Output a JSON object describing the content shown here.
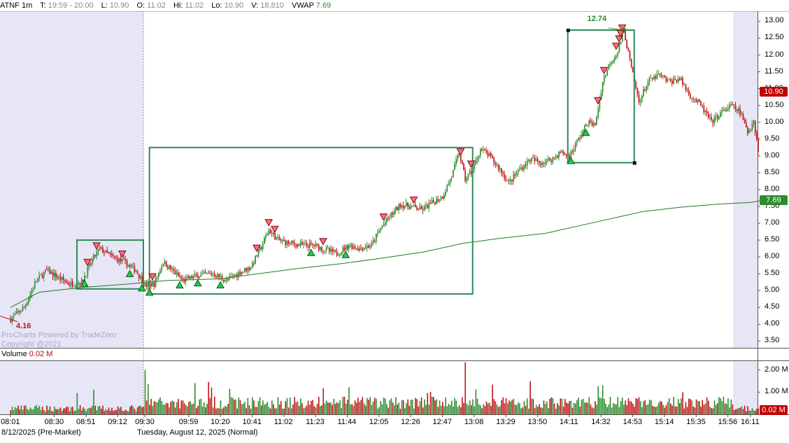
{
  "header": {
    "symbol": "ATNF 1m",
    "t_label": "T:",
    "t_value": "19:59 - 20:00",
    "l_label": "L:",
    "l_value": "10.90",
    "o_label": "O:",
    "o_value": "11.02",
    "h_label": "Hi:",
    "h_value": "11.02",
    "lo_label": "Lo:",
    "lo_value": "10.90",
    "v_label": "V:",
    "v_value": "18,810",
    "vwap_label": "VWAP",
    "vwap_value": "7.69"
  },
  "watermark": {
    "line1": "ProCharts Powered by TradeZero",
    "line2": "Copyright @2021"
  },
  "volume_header": {
    "label": "Volume",
    "value": "0.02 M"
  },
  "dates": {
    "premarket": "8/12/2025 (Pre-Market)",
    "normal": "Tuesday, August 12, 2025 (Normal)"
  },
  "colors": {
    "up": "#2e8b2e",
    "down": "#c01515",
    "vwap": "#1f7a1f",
    "box": "#2e8b57",
    "extended_bg": "#e6e6f7",
    "last_tag": "#c00000",
    "vwap_tag": "#2e8b2e"
  },
  "chart_data": {
    "type": "candlestick",
    "symbol": "ATNF",
    "interval": "1m",
    "price_axis": {
      "ticks": [
        "13.00",
        "12.50",
        "12.00",
        "11.50",
        "11.00",
        "10.50",
        "10.00",
        "9.50",
        "9.00",
        "8.50",
        "8.00",
        "7.50",
        "7.00",
        "6.50",
        "6.00",
        "5.50",
        "5.00",
        "4.50",
        "4.00",
        "3.50"
      ],
      "range": [
        3.3,
        13.3
      ]
    },
    "volume_axis": {
      "ticks": [
        "2.00 M",
        "1.00 M"
      ],
      "range": [
        0,
        2.4
      ]
    },
    "time_ticks": [
      "08:01",
      "08:30",
      "08:51",
      "09:12",
      "09:30",
      "09:59",
      "10:20",
      "10:41",
      "11:02",
      "11:23",
      "11:44",
      "12:05",
      "12:26",
      "12:47",
      "13:08",
      "13:29",
      "13:50",
      "14:11",
      "14:32",
      "14:53",
      "15:14",
      "15:35",
      "15:56",
      "16:11"
    ],
    "last_price_label": "10.90",
    "last_price": 10.9,
    "vwap_label": "7.69",
    "vwap": 7.69,
    "last_volume_label": "0.02 M",
    "low_marker": {
      "label": "4.16",
      "time": "08:01",
      "price": 4.16
    },
    "high_marker": {
      "label": "12.74",
      "time": "14:47",
      "price": 12.74
    },
    "boxes": [
      {
        "start": "08:45",
        "end": "09:29",
        "top": 6.5,
        "bottom": 5.05
      },
      {
        "start": "09:33",
        "end": "13:07",
        "top": 9.25,
        "bottom": 4.9
      },
      {
        "start": "14:10",
        "end": "14:54",
        "top": 12.74,
        "bottom": 8.8
      }
    ],
    "price_path": [
      [
        "08:01",
        4.16
      ],
      [
        "08:10",
        4.5
      ],
      [
        "08:18",
        5.3
      ],
      [
        "08:25",
        5.6
      ],
      [
        "08:32",
        5.4
      ],
      [
        "08:40",
        5.2
      ],
      [
        "08:48",
        5.25
      ],
      [
        "08:55",
        5.9
      ],
      [
        "09:00",
        6.25
      ],
      [
        "09:08",
        6.0
      ],
      [
        "09:16",
        5.85
      ],
      [
        "09:24",
        5.6
      ],
      [
        "09:30",
        5.15
      ],
      [
        "09:36",
        5.2
      ],
      [
        "09:42",
        5.85
      ],
      [
        "09:48",
        5.6
      ],
      [
        "09:55",
        5.3
      ],
      [
        "10:05",
        5.45
      ],
      [
        "10:15",
        5.5
      ],
      [
        "10:24",
        5.3
      ],
      [
        "10:33",
        5.55
      ],
      [
        "10:40",
        5.7
      ],
      [
        "10:47",
        6.3
      ],
      [
        "10:52",
        6.8
      ],
      [
        "10:58",
        6.5
      ],
      [
        "11:06",
        6.4
      ],
      [
        "11:14",
        6.35
      ],
      [
        "11:22",
        6.35
      ],
      [
        "11:30",
        6.2
      ],
      [
        "11:37",
        6.1
      ],
      [
        "11:45",
        6.35
      ],
      [
        "11:52",
        6.25
      ],
      [
        "12:00",
        6.35
      ],
      [
        "12:06",
        6.85
      ],
      [
        "12:12",
        7.2
      ],
      [
        "12:19",
        7.55
      ],
      [
        "12:26",
        7.5
      ],
      [
        "12:33",
        7.4
      ],
      [
        "12:40",
        7.6
      ],
      [
        "12:47",
        7.8
      ],
      [
        "12:53",
        8.4
      ],
      [
        "12:58",
        9.1
      ],
      [
        "13:02",
        8.3
      ],
      [
        "13:07",
        8.6
      ],
      [
        "13:12",
        9.2
      ],
      [
        "13:18",
        9.0
      ],
      [
        "13:25",
        8.6
      ],
      [
        "13:31",
        8.2
      ],
      [
        "13:38",
        8.6
      ],
      [
        "13:45",
        8.9
      ],
      [
        "13:52",
        8.8
      ],
      [
        "13:59",
        8.9
      ],
      [
        "14:05",
        9.1
      ],
      [
        "14:11",
        9.0
      ],
      [
        "14:17",
        9.5
      ],
      [
        "14:23",
        10.0
      ],
      [
        "14:28",
        9.9
      ],
      [
        "14:33",
        11.2
      ],
      [
        "14:38",
        11.8
      ],
      [
        "14:43",
        12.1
      ],
      [
        "14:47",
        12.74
      ],
      [
        "14:52",
        11.6
      ],
      [
        "14:57",
        10.6
      ],
      [
        "15:03",
        11.2
      ],
      [
        "15:10",
        11.4
      ],
      [
        "15:17",
        11.2
      ],
      [
        "15:24",
        11.3
      ],
      [
        "15:31",
        10.8
      ],
      [
        "15:38",
        10.5
      ],
      [
        "15:45",
        10.0
      ],
      [
        "15:52",
        10.3
      ],
      [
        "15:58",
        10.5
      ],
      [
        "16:04",
        10.3
      ],
      [
        "16:09",
        9.7
      ],
      [
        "16:13",
        10.05
      ],
      [
        "16:16",
        9.2
      ]
    ],
    "vwap_path": [
      [
        "08:01",
        4.5
      ],
      [
        "08:20",
        4.95
      ],
      [
        "08:50",
        5.1
      ],
      [
        "09:20",
        5.2
      ],
      [
        "09:45",
        5.3
      ],
      [
        "10:20",
        5.35
      ],
      [
        "10:45",
        5.5
      ],
      [
        "11:10",
        5.65
      ],
      [
        "11:40",
        5.8
      ],
      [
        "12:05",
        5.95
      ],
      [
        "12:35",
        6.15
      ],
      [
        "13:00",
        6.4
      ],
      [
        "13:25",
        6.55
      ],
      [
        "13:55",
        6.7
      ],
      [
        "14:20",
        6.95
      ],
      [
        "14:40",
        7.15
      ],
      [
        "15:00",
        7.35
      ],
      [
        "15:25",
        7.48
      ],
      [
        "15:50",
        7.57
      ],
      [
        "16:11",
        7.62
      ],
      [
        "16:20",
        7.69
      ]
    ],
    "buy_markers": [
      "08:50",
      "09:20",
      "09:28",
      "09:33",
      "09:53",
      "10:05",
      "10:20",
      "11:20",
      "11:43",
      "14:12",
      "14:22"
    ],
    "sell_markers": [
      "08:52",
      "08:58",
      "09:15",
      "09:35",
      "10:44",
      "10:52",
      "10:56",
      "11:28",
      "12:08",
      "12:28",
      "12:59",
      "13:06",
      "14:30",
      "14:34",
      "14:42",
      "14:44",
      "14:45",
      "14:46"
    ]
  }
}
